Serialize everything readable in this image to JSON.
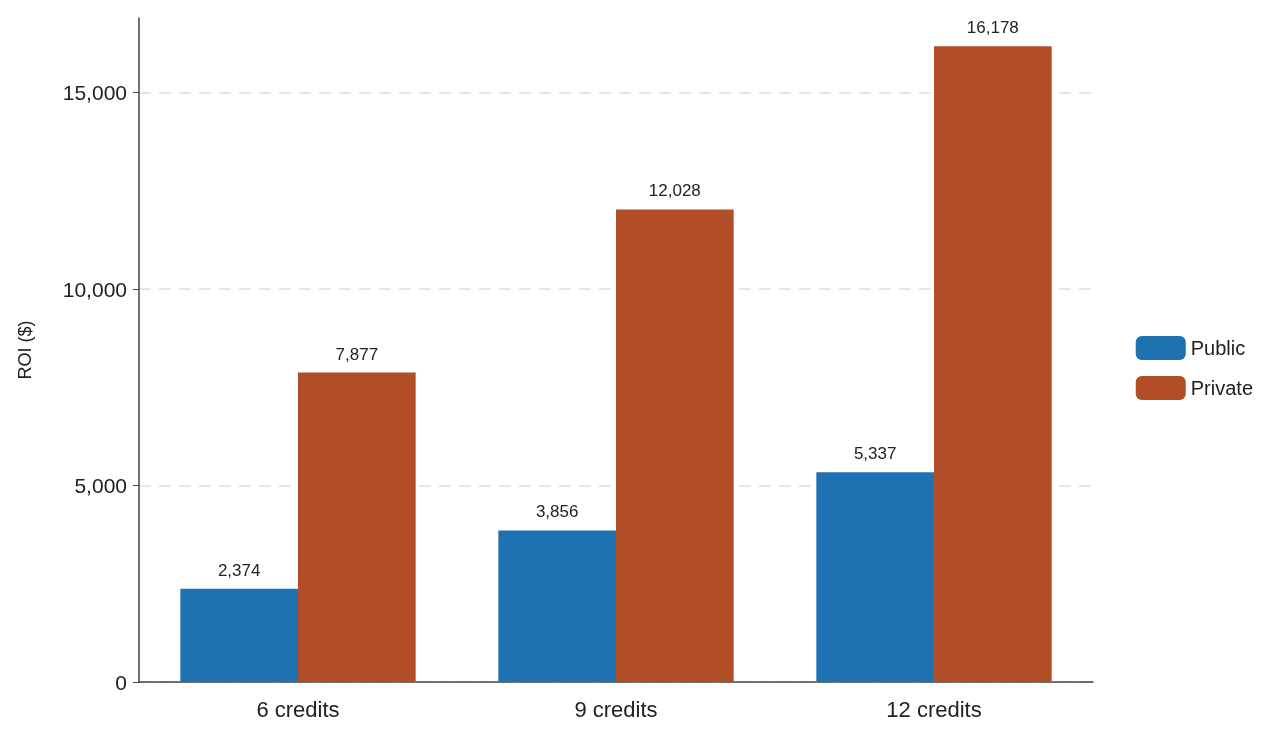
{
  "chart_data": {
    "type": "bar",
    "ylabel": "ROI ($)",
    "categories": [
      "6 credits",
      "9 credits",
      "12 credits"
    ],
    "series": [
      {
        "name": "Public",
        "color": "#1f72b2",
        "values": [
          2374,
          3856,
          5337
        ],
        "value_labels": [
          "2,374",
          "3,856",
          "5,337"
        ]
      },
      {
        "name": "Private",
        "color": "#b14d27",
        "values": [
          7877,
          12028,
          16178
        ],
        "value_labels": [
          "7,877",
          "12,028",
          "16,178"
        ]
      }
    ],
    "ylim": [
      0,
      16900
    ],
    "yticks": [
      {
        "value": 0,
        "label": "0"
      },
      {
        "value": 5000,
        "label": "5,000"
      },
      {
        "value": 10000,
        "label": "10,000"
      },
      {
        "value": 15000,
        "label": "15,000"
      }
    ],
    "grid": "y",
    "legend": "right"
  }
}
